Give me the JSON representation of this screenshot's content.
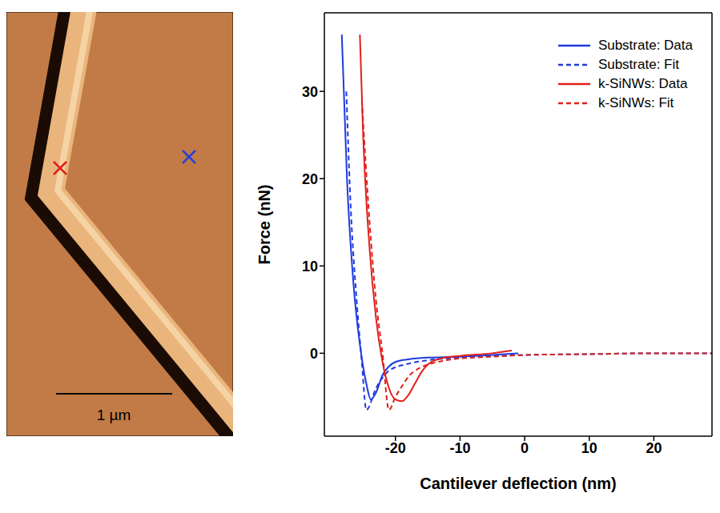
{
  "image": {
    "scale_bar_label": "1 µm",
    "markers": [
      {
        "color": "#e0201c"
      },
      {
        "color": "#2a3fd6"
      }
    ]
  },
  "chart_data": {
    "type": "line",
    "x_label": "Cantilever deflection (nm)",
    "y_label": "Force (nN)",
    "xlim": [
      -31,
      29
    ],
    "xticks": [
      -20,
      -10,
      0,
      10,
      20
    ],
    "ylim": [
      -9.5,
      39
    ],
    "yticks": [
      0,
      10,
      20,
      30
    ],
    "legend": "top-right",
    "series": [
      {
        "name": "Substrate: Data",
        "color": "#1f3be0",
        "line_style": "solid",
        "x": [
          -28.3,
          -27.5,
          -26.5,
          -25.5,
          -24.5,
          -23.8,
          -23,
          -22,
          -21,
          -20,
          -18,
          -15,
          -10,
          -5,
          -1
        ],
        "values": [
          36.5,
          20,
          8,
          1,
          -3.5,
          -5.3,
          -4.5,
          -2.5,
          -1.5,
          -1,
          -0.7,
          -0.5,
          -0.4,
          -0.2,
          0
        ]
      },
      {
        "name": "Substrate: Fit",
        "color": "#1f3be0",
        "line_style": "dashed",
        "x": [
          -27.6,
          -27,
          -26,
          -25.2,
          -24.5,
          -23,
          -21,
          -18,
          -15,
          -10,
          0,
          10,
          20,
          29
        ],
        "values": [
          30,
          18,
          6,
          -1,
          -6.5,
          -4,
          -2,
          -1.2,
          -0.8,
          -0.5,
          -0.2,
          -0.1,
          0,
          0
        ]
      },
      {
        "name": "k-SiNWs: Data",
        "color": "#e0201c",
        "line_style": "solid",
        "x": [
          -25.5,
          -25,
          -24,
          -23,
          -22,
          -21,
          -20,
          -19,
          -18,
          -17,
          -16,
          -15,
          -13,
          -10,
          -5,
          -2
        ],
        "values": [
          36.5,
          25,
          12,
          4,
          -1,
          -4,
          -5.3,
          -5.5,
          -4.8,
          -3.5,
          -2.2,
          -1.3,
          -0.6,
          -0.3,
          0,
          0.3
        ]
      },
      {
        "name": "k-SiNWs: Fit",
        "color": "#e0201c",
        "line_style": "dashed",
        "x": [
          -25.2,
          -24,
          -23,
          -22,
          -21,
          -20,
          -19,
          -18,
          -16,
          -14,
          -12,
          -10,
          -5,
          0,
          10,
          20,
          29
        ],
        "values": [
          29,
          15,
          6,
          0,
          -6.5,
          -5,
          -3.8,
          -2.7,
          -1.6,
          -1.1,
          -0.8,
          -0.6,
          -0.4,
          -0.2,
          -0.1,
          0,
          0
        ]
      }
    ]
  }
}
